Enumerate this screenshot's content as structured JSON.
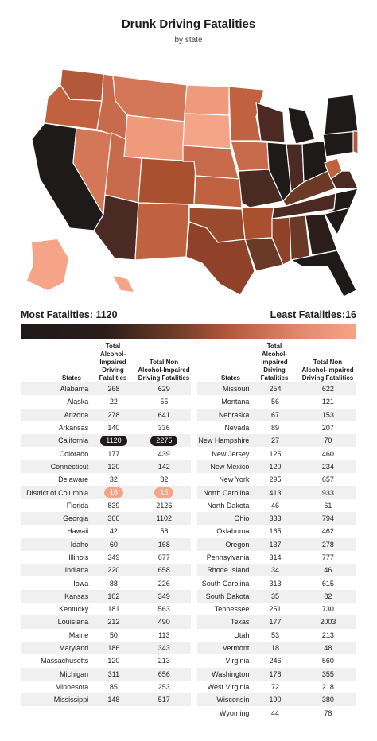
{
  "title": "Drunk Driving Fatalities",
  "subtitle": "by state",
  "legend": {
    "most_label": "Most Fatalities: 1120",
    "least_label": "Least Fatalities:16",
    "colors": [
      "#1e1a1a",
      "#2a1d1a",
      "#6b3a27",
      "#b2583b",
      "#e0876a",
      "#f5a487"
    ]
  },
  "columns": {
    "states": "States",
    "alcohol": [
      "Total",
      "Alcohol-Impaired",
      "Driving Fatalities"
    ],
    "non_alcohol": [
      "Total Non",
      "Alcohol-Impaired",
      "Driving Fatalities"
    ]
  },
  "chart_data": {
    "type": "table",
    "max_state": "California",
    "min_state": "District of Columbia",
    "left_rows": [
      {
        "state": "Alabama",
        "alcohol": 268,
        "non_alcohol": 629
      },
      {
        "state": "Alaska",
        "alcohol": 22,
        "non_alcohol": 55
      },
      {
        "state": "Arizona",
        "alcohol": 278,
        "non_alcohol": 641
      },
      {
        "state": "Arkansas",
        "alcohol": 140,
        "non_alcohol": 336
      },
      {
        "state": "California",
        "alcohol": 1120,
        "non_alcohol": 2275
      },
      {
        "state": "Colorado",
        "alcohol": 177,
        "non_alcohol": 439
      },
      {
        "state": "Connecticut",
        "alcohol": 120,
        "non_alcohol": 142
      },
      {
        "state": "Delaware",
        "alcohol": 32,
        "non_alcohol": 82
      },
      {
        "state": "District of Columbia",
        "alcohol": 16,
        "non_alcohol": 15
      },
      {
        "state": "Florida",
        "alcohol": 839,
        "non_alcohol": 2126
      },
      {
        "state": "Georgia",
        "alcohol": 366,
        "non_alcohol": 1102
      },
      {
        "state": "Hawaii",
        "alcohol": 42,
        "non_alcohol": 58
      },
      {
        "state": "Idaho",
        "alcohol": 60,
        "non_alcohol": 168
      },
      {
        "state": "Illinois",
        "alcohol": 349,
        "non_alcohol": 677
      },
      {
        "state": "Indiana",
        "alcohol": 220,
        "non_alcohol": 658
      },
      {
        "state": "Iowa",
        "alcohol": 88,
        "non_alcohol": 226
      },
      {
        "state": "Kansas",
        "alcohol": 102,
        "non_alcohol": 349
      },
      {
        "state": "Kentucky",
        "alcohol": 181,
        "non_alcohol": 563
      },
      {
        "state": "Louisiana",
        "alcohol": 212,
        "non_alcohol": 490
      },
      {
        "state": "Maine",
        "alcohol": 50,
        "non_alcohol": 113
      },
      {
        "state": "Maryland",
        "alcohol": 186,
        "non_alcohol": 343
      },
      {
        "state": "Massachusetts",
        "alcohol": 120,
        "non_alcohol": 213
      },
      {
        "state": "Michigan",
        "alcohol": 311,
        "non_alcohol": 656
      },
      {
        "state": "Minnesota",
        "alcohol": 85,
        "non_alcohol": 253
      },
      {
        "state": "Mississippi",
        "alcohol": 148,
        "non_alcohol": 517
      }
    ],
    "right_rows": [
      {
        "state": "Missouri",
        "alcohol": 254,
        "non_alcohol": 622
      },
      {
        "state": "Montana",
        "alcohol": 56,
        "non_alcohol": 121
      },
      {
        "state": "Nebraska",
        "alcohol": 67,
        "non_alcohol": 153
      },
      {
        "state": "Nevada",
        "alcohol": 89,
        "non_alcohol": 207
      },
      {
        "state": "New Hampshire",
        "alcohol": 27,
        "non_alcohol": 70
      },
      {
        "state": "New Jersey",
        "alcohol": 125,
        "non_alcohol": 460
      },
      {
        "state": "New Mexico",
        "alcohol": 120,
        "non_alcohol": 234
      },
      {
        "state": "New York",
        "alcohol": 295,
        "non_alcohol": 657
      },
      {
        "state": "North Carolina",
        "alcohol": 413,
        "non_alcohol": 933
      },
      {
        "state": "North Dakota",
        "alcohol": 46,
        "non_alcohol": 61
      },
      {
        "state": "Ohio",
        "alcohol": 333,
        "non_alcohol": 794
      },
      {
        "state": "Oklahoma",
        "alcohol": 165,
        "non_alcohol": 462
      },
      {
        "state": "Oregon",
        "alcohol": 137,
        "non_alcohol": 278
      },
      {
        "state": "Pennsylvania",
        "alcohol": 314,
        "non_alcohol": 777
      },
      {
        "state": "Rhode Island",
        "alcohol": 34,
        "non_alcohol": 46
      },
      {
        "state": "South Carolina",
        "alcohol": 313,
        "non_alcohol": 615
      },
      {
        "state": "South Dakota",
        "alcohol": 35,
        "non_alcohol": 82
      },
      {
        "state": "Tennessee",
        "alcohol": 251,
        "non_alcohol": 730
      },
      {
        "state": "Texas",
        "alcohol": 177,
        "non_alcohol": 2003
      },
      {
        "state": "Utah",
        "alcohol": 53,
        "non_alcohol": 213
      },
      {
        "state": "Vermont",
        "alcohol": 18,
        "non_alcohol": 48
      },
      {
        "state": "Virginia",
        "alcohol": 246,
        "non_alcohol": 560
      },
      {
        "state": "Washington",
        "alcohol": 178,
        "non_alcohol": 355
      },
      {
        "state": "West Virginia",
        "alcohol": 72,
        "non_alcohol": 218
      },
      {
        "state": "Wisconsin",
        "alcohol": 190,
        "non_alcohol": 380
      },
      {
        "state": "Wyoming",
        "alcohol": 44,
        "non_alcohol": 78
      }
    ]
  }
}
